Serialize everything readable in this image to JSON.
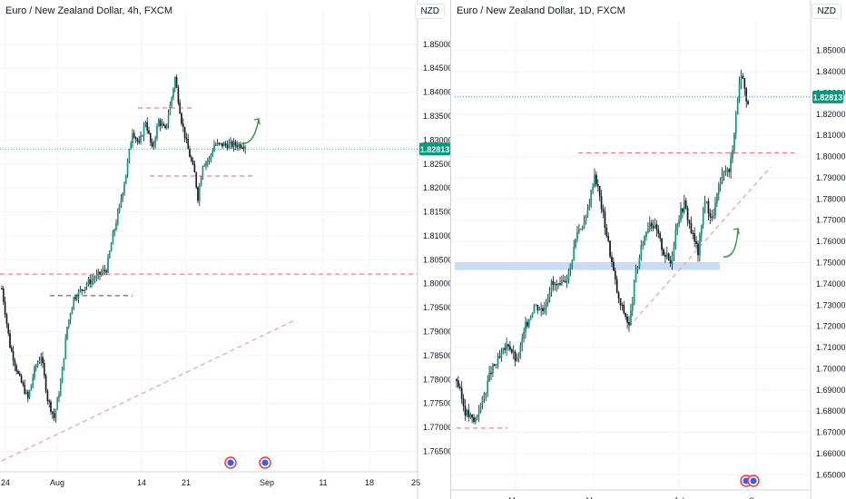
{
  "colors": {
    "up": "#089981",
    "down": "#131722",
    "wick": "#131722",
    "resistance": "#f23645",
    "trendline": "#f7a1a8",
    "price_line": "#089981",
    "zone": "#bbd3f3",
    "arrow": "#2e9b3a",
    "grid": "#f0f3fa",
    "axis_text": "#131722"
  },
  "chart_data": [
    {
      "type": "candlestick",
      "title": "Euro / New Zealand Dollar, 4h, FXCM",
      "currency": "NZD",
      "last_price_label": "1.82813",
      "last_price": 1.82813,
      "ylim": [
        1.763,
        1.853
      ],
      "y_ticks": [
        "1.85000",
        "1.84500",
        "1.84000",
        "1.83500",
        "1.83000",
        "1.82500",
        "1.82000",
        "1.81500",
        "1.81000",
        "1.80500",
        "1.80000",
        "1.79500",
        "1.79000",
        "1.78500",
        "1.78000",
        "1.77500",
        "1.77000",
        "1.76500"
      ],
      "x_ticks": [
        "24",
        "Aug",
        "14",
        "21",
        "Sep",
        "11",
        "18",
        "25"
      ],
      "bars": 150,
      "close_path": [
        [
          0,
          1.799
        ],
        [
          5,
          1.787
        ],
        [
          10,
          1.781
        ],
        [
          16,
          1.776
        ],
        [
          20,
          1.782
        ],
        [
          24,
          1.785
        ],
        [
          28,
          1.776
        ],
        [
          32,
          1.772
        ],
        [
          36,
          1.779
        ],
        [
          40,
          1.791
        ],
        [
          44,
          1.797
        ],
        [
          52,
          1.8
        ],
        [
          60,
          1.802
        ],
        [
          64,
          1.803
        ],
        [
          68,
          1.81
        ],
        [
          72,
          1.816
        ],
        [
          76,
          1.823
        ],
        [
          80,
          1.832
        ],
        [
          84,
          1.829
        ],
        [
          88,
          1.834
        ],
        [
          92,
          1.828
        ],
        [
          96,
          1.834
        ],
        [
          100,
          1.832
        ],
        [
          104,
          1.839
        ],
        [
          106,
          1.843
        ],
        [
          110,
          1.834
        ],
        [
          114,
          1.828
        ],
        [
          118,
          1.823
        ],
        [
          120,
          1.818
        ],
        [
          123,
          1.825
        ],
        [
          127,
          1.826
        ],
        [
          130,
          1.829
        ]
      ],
      "levels": [
        {
          "kind": "dashed-red",
          "price": 1.802
        },
        {
          "kind": "dashed-red-short",
          "price": 1.8367
        },
        {
          "kind": "dashed-red-short",
          "price": 1.8225
        },
        {
          "kind": "dashed-black-short",
          "price": 1.7975
        }
      ],
      "trendline": {
        "from": [
          0,
          1.763
        ],
        "to": [
          180,
          1.7925
        ]
      },
      "arrow": "up-right",
      "event_markers": 2
    },
    {
      "type": "candlestick",
      "title": "Euro / New Zealand Dollar, 1D, FXCM",
      "currency": "NZD",
      "last_price_label": "1.82813",
      "last_price": 1.82813,
      "ylim": [
        1.648,
        1.855
      ],
      "y_ticks": [
        "1.85000",
        "1.84000",
        "1.83000",
        "1.82000",
        "1.81000",
        "1.80000",
        "1.79000",
        "1.78000",
        "1.77000",
        "1.76000",
        "1.75000",
        "1.74000",
        "1.73000",
        "1.72000",
        "1.71000",
        "1.70000",
        "1.69000",
        "1.68000",
        "1.67000",
        "1.66000",
        "1.65000"
      ],
      "x_ticks": [
        "Mar",
        "May",
        "Jul",
        "Sep"
      ],
      "bars": 170,
      "close_path": [
        [
          0,
          1.695
        ],
        [
          5,
          1.68
        ],
        [
          10,
          1.675
        ],
        [
          15,
          1.685
        ],
        [
          20,
          1.699
        ],
        [
          25,
          1.705
        ],
        [
          30,
          1.712
        ],
        [
          35,
          1.703
        ],
        [
          40,
          1.72
        ],
        [
          45,
          1.73
        ],
        [
          50,
          1.728
        ],
        [
          55,
          1.74
        ],
        [
          60,
          1.738
        ],
        [
          65,
          1.745
        ],
        [
          70,
          1.765
        ],
        [
          75,
          1.77
        ],
        [
          80,
          1.792
        ],
        [
          82,
          1.785
        ],
        [
          86,
          1.768
        ],
        [
          90,
          1.75
        ],
        [
          94,
          1.732
        ],
        [
          98,
          1.725
        ],
        [
          100,
          1.72
        ],
        [
          104,
          1.745
        ],
        [
          108,
          1.76
        ],
        [
          112,
          1.77
        ],
        [
          116,
          1.765
        ],
        [
          120,
          1.755
        ],
        [
          124,
          1.75
        ],
        [
          128,
          1.77
        ],
        [
          132,
          1.778
        ],
        [
          136,
          1.765
        ],
        [
          140,
          1.755
        ],
        [
          144,
          1.78
        ],
        [
          148,
          1.77
        ],
        [
          152,
          1.785
        ],
        [
          156,
          1.795
        ],
        [
          158,
          1.792
        ],
        [
          160,
          1.805
        ],
        [
          162,
          1.82
        ],
        [
          164,
          1.835
        ],
        [
          166,
          1.839
        ],
        [
          168,
          1.825
        ],
        [
          170,
          1.828
        ]
      ],
      "levels": [
        {
          "kind": "dashed-red",
          "price": 1.8018
        },
        {
          "kind": "dashed-red-short",
          "price": 1.672
        },
        {
          "kind": "zone",
          "from": 1.7465,
          "to": 1.7485
        }
      ],
      "trendline": {
        "from": [
          100,
          1.72
        ],
        "to": [
          182,
          1.795
        ]
      },
      "arrow": "up-right",
      "event_markers": 2
    }
  ]
}
